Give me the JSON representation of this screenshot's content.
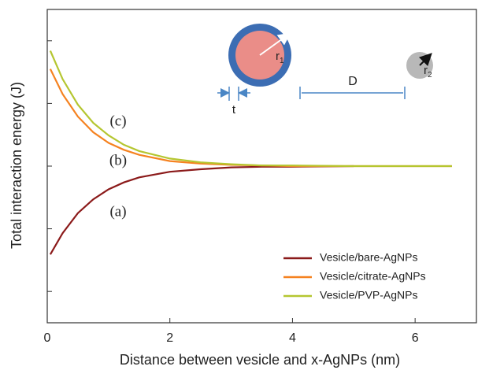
{
  "chart_data": {
    "type": "line",
    "x_label": "Distance between vesicle and x-AgNPs (nm)",
    "y_label": "Total interaction energy (J)",
    "x": [
      0.05,
      0.25,
      0.5,
      0.75,
      1,
      1.25,
      1.5,
      2,
      2.5,
      3,
      3.5,
      4,
      5,
      6,
      6.6
    ],
    "series": [
      {
        "name": "Vesicle/bare-AgNPs",
        "color": "#8b1a1a",
        "values": [
          -1.41,
          -1.07,
          -0.75,
          -0.53,
          -0.37,
          -0.26,
          -0.18,
          -0.09,
          -0.05,
          -0.02,
          -0.01,
          -0.01,
          0,
          null,
          null
        ]
      },
      {
        "name": "Vesicle/citrate-AgNPs",
        "color": "#f58220",
        "values": [
          1.55,
          1.15,
          0.79,
          0.54,
          0.37,
          0.26,
          0.18,
          0.08,
          0.04,
          0.02,
          0.01,
          0,
          0,
          0,
          0
        ]
      },
      {
        "name": "Vesicle/PVP-AgNPs",
        "color": "#b5c630",
        "values": [
          1.84,
          1.39,
          0.98,
          0.69,
          0.49,
          0.34,
          0.24,
          0.12,
          0.06,
          0.03,
          0.01,
          0.01,
          0,
          0,
          0
        ]
      }
    ],
    "xlim": [
      0,
      7
    ],
    "xticks": [
      0,
      2,
      4,
      6
    ],
    "ylim": [
      -2.5,
      2.5
    ],
    "ytick_marks": [
      -2,
      -1,
      0,
      1,
      2
    ],
    "annotations": [
      "(c)",
      "(b)",
      "(a)"
    ],
    "legend": "lower right",
    "inset": {
      "r1": {
        "base": "r",
        "sub": "1"
      },
      "r2": {
        "base": "r",
        "sub": "2"
      },
      "t": "t",
      "D": "D"
    }
  }
}
